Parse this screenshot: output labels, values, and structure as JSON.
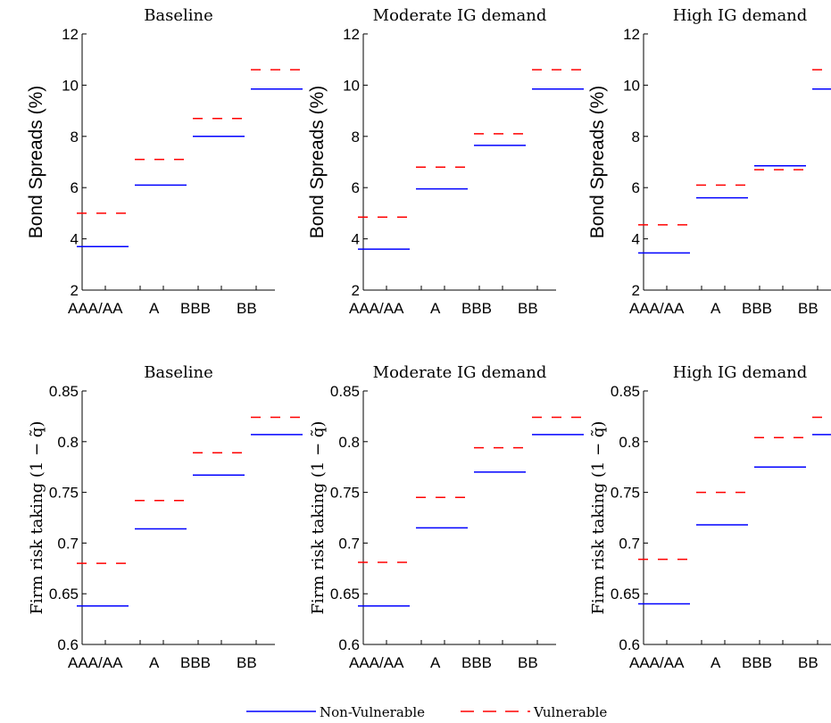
{
  "chart_data": [
    {
      "type": "line",
      "title": "Baseline",
      "ylabel": "Bond Spreads (%)",
      "ylabel_style": "sans",
      "categories": [
        "AAA/AA",
        "A",
        "BBB",
        "BB"
      ],
      "ylim": [
        2,
        12
      ],
      "yticks": [
        "2",
        "4",
        "6",
        "8",
        "10",
        "12"
      ],
      "series": [
        {
          "name": "Non-Vulnerable",
          "values": [
            3.7,
            6.1,
            8.0,
            9.85
          ]
        },
        {
          "name": "Vulnerable",
          "values": [
            5.0,
            7.1,
            8.7,
            10.6
          ]
        }
      ]
    },
    {
      "type": "line",
      "title": "Moderate IG demand",
      "ylabel": "Bond Spreads (%)",
      "ylabel_style": "sans",
      "categories": [
        "AAA/AA",
        "A",
        "BBB",
        "BB"
      ],
      "ylim": [
        2,
        12
      ],
      "yticks": [
        "2",
        "4",
        "6",
        "8",
        "10",
        "12"
      ],
      "series": [
        {
          "name": "Non-Vulnerable",
          "values": [
            3.6,
            5.95,
            7.65,
            9.85
          ]
        },
        {
          "name": "Vulnerable",
          "values": [
            4.85,
            6.8,
            8.1,
            10.6
          ]
        }
      ]
    },
    {
      "type": "line",
      "title": "High IG demand",
      "ylabel": "Bond Spreads (%)",
      "ylabel_style": "sans",
      "categories": [
        "AAA/AA",
        "A",
        "BBB",
        "BB"
      ],
      "ylim": [
        2,
        12
      ],
      "yticks": [
        "2",
        "4",
        "6",
        "8",
        "10",
        "12"
      ],
      "series": [
        {
          "name": "Non-Vulnerable",
          "values": [
            3.45,
            5.6,
            6.85,
            9.85
          ]
        },
        {
          "name": "Vulnerable",
          "values": [
            4.55,
            6.1,
            6.7,
            10.6
          ]
        }
      ]
    },
    {
      "type": "line",
      "title": "Baseline",
      "ylabel": "Firm risk taking (1 − q̃)",
      "ylabel_style": "serif",
      "categories": [
        "AAA/AA",
        "A",
        "BBB",
        "BB"
      ],
      "ylim": [
        0.6,
        0.85
      ],
      "yticks": [
        "0.6",
        "0.65",
        "0.7",
        "0.75",
        "0.8",
        "0.85"
      ],
      "series": [
        {
          "name": "Non-Vulnerable",
          "values": [
            0.638,
            0.714,
            0.767,
            0.807
          ]
        },
        {
          "name": "Vulnerable",
          "values": [
            0.68,
            0.742,
            0.789,
            0.824
          ]
        }
      ]
    },
    {
      "type": "line",
      "title": "Moderate IG demand",
      "ylabel": "Firm risk taking (1 − q̃)",
      "ylabel_style": "serif",
      "categories": [
        "AAA/AA",
        "A",
        "BBB",
        "BB"
      ],
      "ylim": [
        0.6,
        0.85
      ],
      "yticks": [
        "0.6",
        "0.65",
        "0.7",
        "0.75",
        "0.8",
        "0.85"
      ],
      "series": [
        {
          "name": "Non-Vulnerable",
          "values": [
            0.638,
            0.715,
            0.77,
            0.807
          ]
        },
        {
          "name": "Vulnerable",
          "values": [
            0.681,
            0.745,
            0.794,
            0.824
          ]
        }
      ]
    },
    {
      "type": "line",
      "title": "High IG demand",
      "ylabel": "Firm risk taking (1 − q̃)",
      "ylabel_style": "serif",
      "categories": [
        "AAA/AA",
        "A",
        "BBB",
        "BB"
      ],
      "ylim": [
        0.6,
        0.85
      ],
      "yticks": [
        "0.6",
        "0.65",
        "0.7",
        "0.75",
        "0.8",
        "0.85"
      ],
      "series": [
        {
          "name": "Non-Vulnerable",
          "values": [
            0.64,
            0.718,
            0.775,
            0.807
          ]
        },
        {
          "name": "Vulnerable",
          "values": [
            0.684,
            0.75,
            0.804,
            0.824
          ]
        }
      ]
    }
  ],
  "legend": {
    "items": [
      {
        "label": "Non-Vulnerable",
        "color": "#0000ff",
        "style": "solid"
      },
      {
        "label": "Vulnerable",
        "color": "#ff0000",
        "style": "dashed"
      }
    ]
  },
  "colors": {
    "non_vulnerable": "#0000ff",
    "vulnerable": "#ff0000"
  }
}
